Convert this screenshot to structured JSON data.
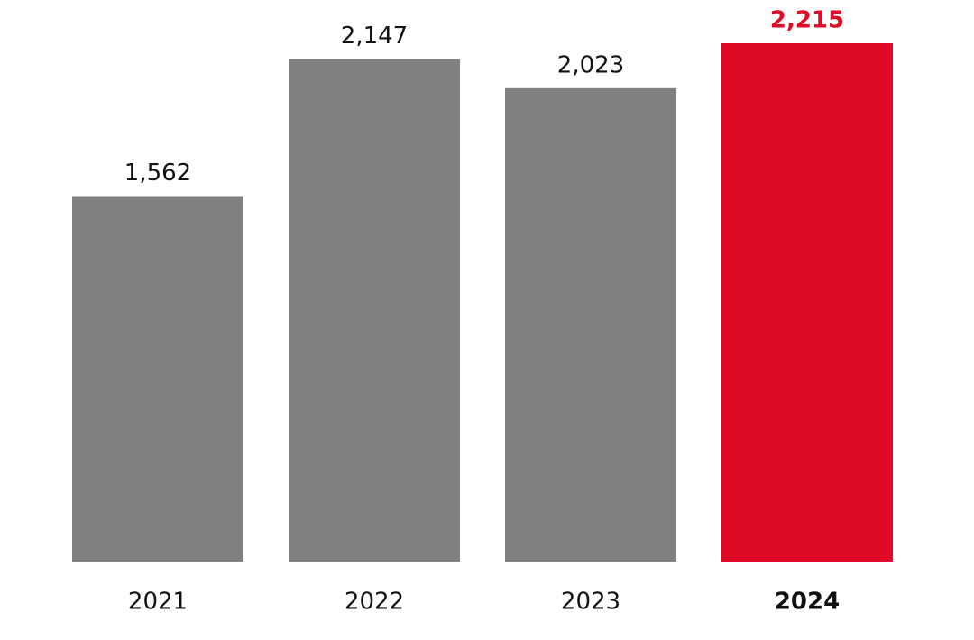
{
  "chart_data": {
    "type": "bar",
    "categories": [
      "2021",
      "2022",
      "2023",
      "2024"
    ],
    "values": [
      1562,
      2147,
      2023,
      2215
    ],
    "value_labels": [
      "1,562",
      "2,147",
      "2,023",
      "2,215"
    ],
    "colors": [
      "#808080",
      "#808080",
      "#808080",
      "#e00a24"
    ],
    "highlight_index": 3
  }
}
